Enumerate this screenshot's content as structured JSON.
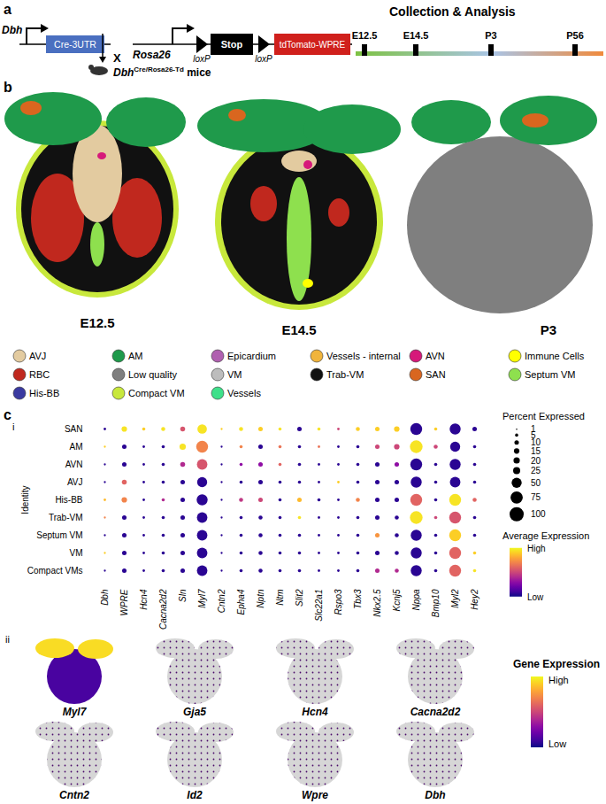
{
  "panel_a": {
    "label": "a",
    "promoter_1": "Dbh",
    "cre": "Cre-3UTR",
    "cross": "X",
    "promoter_2": "Rosa26",
    "lox": "loxP",
    "stop": "Stop",
    "reporter": "tdTomato-WPRE",
    "mice": {
      "gene": "Dbh",
      "superscript": "Cre/Rosa26-Td",
      "suffix": " mice"
    },
    "timeline": {
      "title": "Collection & Analysis",
      "points": [
        "E12.5",
        "E14.5",
        "P3",
        "P56"
      ]
    }
  },
  "panel_b": {
    "label": "b",
    "sections": [
      "E12.5",
      "E14.5",
      "P3"
    ],
    "legend": [
      {
        "name": "AVJ",
        "color": "#e3cba0"
      },
      {
        "name": "AM",
        "color": "#1f9a4b"
      },
      {
        "name": "Epicardium",
        "color": "#b060b0"
      },
      {
        "name": "Vessels - internal",
        "color": "#f0b43c"
      },
      {
        "name": "AVN",
        "color": "#d6197a"
      },
      {
        "name": "Immune Cells",
        "color": "#ffff00"
      },
      {
        "name": "RBC",
        "color": "#c0281e"
      },
      {
        "name": "Low quality",
        "color": "#7f7f7f"
      },
      {
        "name": "VM",
        "color": "#bdbdbd"
      },
      {
        "name": "Trab-VM",
        "color": "#111111"
      },
      {
        "name": "SAN",
        "color": "#d9661f"
      },
      {
        "name": "Septum VM",
        "color": "#8ee04e"
      },
      {
        "name": "His-BB",
        "color": "#3a3aa0"
      },
      {
        "name": "Compact VM",
        "color": "#c8e83c"
      },
      {
        "name": "Vessels",
        "color": "#3fe08a"
      }
    ]
  },
  "panel_c": {
    "label": "c",
    "sub": "i"
  },
  "chart_data": {
    "type": "dot",
    "color": "plasma",
    "y_label": "Identity",
    "categories": [
      "Dbh",
      "WPRE",
      "Hcn4",
      "Cacna2d2",
      "Sln",
      "Myl7",
      "Cntn2",
      "Epha4",
      "Nptn",
      "Ntm",
      "Slit2",
      "Slc22a1",
      "Rspo3",
      "Tbx3",
      "Nkx2.5",
      "Kcnj5",
      "Nppa",
      "Bmp10",
      "Myl2",
      "Hey2"
    ],
    "identities": [
      "SAN",
      "AM",
      "AVN",
      "AVJ",
      "His-BB",
      "Trab-VM",
      "Septum VM",
      "VM",
      "Compact VMs"
    ],
    "percent_expressed": [
      [
        3,
        15,
        5,
        8,
        12,
        45,
        2,
        8,
        10,
        5,
        10,
        5,
        3,
        8,
        10,
        15,
        70,
        5,
        60,
        10
      ],
      [
        2,
        10,
        3,
        5,
        20,
        70,
        2,
        5,
        10,
        5,
        5,
        3,
        3,
        5,
        10,
        15,
        80,
        8,
        50,
        5
      ],
      [
        2,
        10,
        3,
        5,
        12,
        55,
        2,
        5,
        10,
        5,
        5,
        3,
        3,
        5,
        10,
        10,
        70,
        5,
        60,
        5
      ],
      [
        2,
        12,
        3,
        5,
        10,
        50,
        2,
        5,
        10,
        5,
        5,
        3,
        3,
        5,
        10,
        10,
        60,
        5,
        55,
        5
      ],
      [
        3,
        15,
        3,
        5,
        10,
        60,
        2,
        8,
        10,
        5,
        10,
        5,
        3,
        8,
        10,
        10,
        70,
        5,
        70,
        8
      ],
      [
        2,
        10,
        3,
        5,
        10,
        55,
        2,
        5,
        8,
        5,
        5,
        3,
        3,
        5,
        10,
        8,
        80,
        5,
        70,
        5
      ],
      [
        2,
        10,
        3,
        5,
        10,
        55,
        2,
        5,
        8,
        5,
        5,
        3,
        3,
        5,
        10,
        8,
        60,
        5,
        70,
        5
      ],
      [
        2,
        10,
        3,
        5,
        10,
        55,
        2,
        5,
        8,
        5,
        5,
        3,
        3,
        5,
        10,
        8,
        60,
        5,
        70,
        5
      ],
      [
        2,
        10,
        3,
        5,
        10,
        55,
        2,
        5,
        8,
        5,
        5,
        3,
        3,
        5,
        10,
        8,
        60,
        5,
        70,
        5
      ]
    ],
    "average_expression": [
      [
        0.05,
        0.95,
        0.9,
        0.95,
        0.55,
        0.95,
        0.9,
        0.95,
        0.9,
        0.95,
        0.05,
        0.95,
        0.5,
        0.9,
        0.9,
        0.9,
        0.05,
        0.9,
        0.05,
        0.05
      ],
      [
        0.9,
        0.05,
        0.05,
        0.05,
        0.95,
        0.7,
        0.05,
        0.7,
        0.05,
        0.65,
        0.05,
        0.65,
        0.05,
        0.05,
        0.5,
        0.5,
        0.95,
        0.5,
        0.05,
        0.05
      ],
      [
        0.05,
        0.05,
        0.05,
        0.05,
        0.4,
        0.55,
        0.05,
        0.3,
        0.3,
        0.6,
        0.05,
        0.05,
        0.05,
        0.05,
        0.05,
        0.3,
        0.05,
        0.05,
        0.05,
        0.05
      ],
      [
        0.05,
        0.6,
        0.05,
        0.05,
        0.05,
        0.05,
        0.05,
        0.05,
        0.05,
        0.05,
        0.05,
        0.05,
        0.9,
        0.05,
        0.05,
        0.05,
        0.05,
        0.05,
        0.05,
        0.05
      ],
      [
        0.85,
        0.7,
        0.05,
        0.4,
        0.05,
        0.05,
        0.05,
        0.45,
        0.5,
        0.05,
        0.85,
        0.05,
        0.05,
        0.7,
        0.05,
        0.05,
        0.6,
        0.05,
        0.95,
        0.6
      ],
      [
        0.7,
        0.05,
        0.05,
        0.05,
        0.05,
        0.05,
        0.05,
        0.05,
        0.05,
        0.05,
        0.95,
        0.05,
        0.05,
        0.05,
        0.05,
        0.05,
        0.95,
        0.5,
        0.55,
        0.05
      ],
      [
        0.05,
        0.05,
        0.05,
        0.05,
        0.05,
        0.05,
        0.05,
        0.05,
        0.05,
        0.05,
        0.05,
        0.05,
        0.05,
        0.05,
        0.75,
        0.05,
        0.05,
        0.05,
        0.9,
        0.05
      ],
      [
        0.9,
        0.05,
        0.05,
        0.05,
        0.05,
        0.05,
        0.05,
        0.05,
        0.05,
        0.05,
        0.05,
        0.05,
        0.05,
        0.05,
        0.05,
        0.05,
        0.05,
        0.05,
        0.6,
        0.9
      ],
      [
        0.05,
        0.05,
        0.05,
        0.05,
        0.05,
        0.05,
        0.05,
        0.05,
        0.05,
        0.05,
        0.05,
        0.05,
        0.05,
        0.05,
        0.4,
        0.4,
        0.05,
        0.05,
        0.6,
        0.95
      ]
    ],
    "size_legend": {
      "title": "Percent Expressed",
      "lim": [
        0,
        100
      ],
      "ticks": [
        1,
        5,
        10,
        15,
        20,
        25,
        50,
        75,
        100
      ]
    },
    "color_legend": {
      "title": "Average Expression",
      "lim": [
        0,
        1
      ],
      "ticks": [
        {
          "value": 1,
          "label": "High"
        },
        {
          "value": 0,
          "label": "Low"
        }
      ]
    }
  },
  "panel_c_ii": {
    "label": "ii",
    "genes": [
      "Myl7",
      "Gja5",
      "Hcn4",
      "Cacna2d2",
      "Cntn2",
      "Id2",
      "Wpre",
      "Dbh"
    ],
    "colorbar": {
      "title": "Gene Expression",
      "labels": [
        "High",
        "Low"
      ]
    }
  }
}
